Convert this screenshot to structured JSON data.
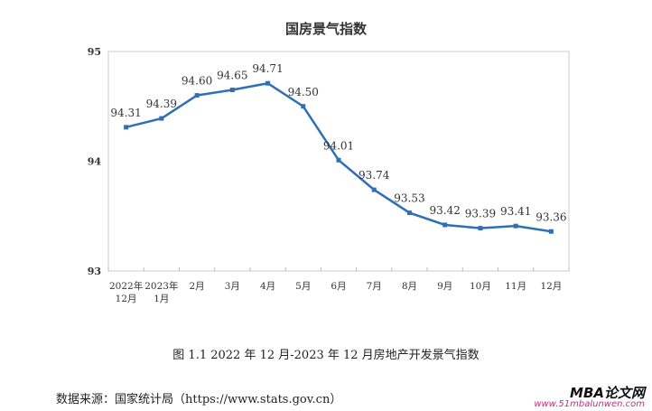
{
  "chart_data": {
    "type": "line",
    "title": "国房景气指数",
    "categories": [
      "2022年\n12月",
      "2023年\n1月",
      "2月",
      "3月",
      "4月",
      "5月",
      "6月",
      "7月",
      "8月",
      "9月",
      "10月",
      "11月",
      "12月"
    ],
    "values": [
      94.31,
      94.39,
      94.6,
      94.65,
      94.71,
      94.5,
      94.01,
      93.74,
      93.53,
      93.42,
      93.39,
      93.41,
      93.36
    ],
    "data_labels": [
      "94.31",
      "94.39",
      "94.60",
      "94.65",
      "94.71",
      "94.50",
      "94.01",
      "93.74",
      "93.53",
      "93.42",
      "93.39",
      "93.41",
      "93.36"
    ],
    "ylim": [
      93,
      95
    ],
    "yticks": [
      "93",
      "94",
      "95"
    ],
    "grid": false,
    "line_color": "#2e6fb5",
    "xlabel": "",
    "ylabel": ""
  },
  "caption": "图 1.1 2022 年 12 月-2023 年 12 月房地产开发景气指数",
  "source": "数据来源：国家统计局（https://www.stats.gov.cn）",
  "watermark": {
    "brand": "MBA论文网",
    "url": "www.51mbalunwen.com"
  }
}
